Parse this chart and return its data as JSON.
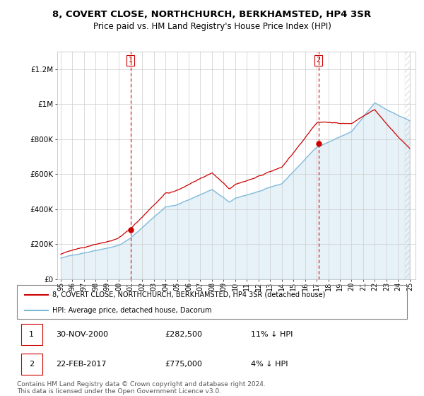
{
  "title": "8, COVERT CLOSE, NORTHCHURCH, BERKHAMSTED, HP4 3SR",
  "subtitle": "Price paid vs. HM Land Registry's House Price Index (HPI)",
  "hpi_color": "#7ab8d9",
  "price_color": "#cc0000",
  "vline_color": "#cc0000",
  "background_color": "#ffffff",
  "grid_color": "#cccccc",
  "ylim": [
    0,
    1300000
  ],
  "yticks": [
    0,
    200000,
    400000,
    600000,
    800000,
    1000000,
    1200000
  ],
  "ytick_labels": [
    "£0",
    "£200K",
    "£400K",
    "£600K",
    "£800K",
    "£1M",
    "£1.2M"
  ],
  "sale1_year": 2001.0,
  "sale1_price": 282500,
  "sale1_label": "1",
  "sale2_year": 2017.15,
  "sale2_price": 775000,
  "sale2_label": "2",
  "legend_entries": [
    {
      "label": "8, COVERT CLOSE, NORTHCHURCH, BERKHAMSTED, HP4 3SR (detached house)",
      "color": "#cc0000"
    },
    {
      "label": "HPI: Average price, detached house, Dacorum",
      "color": "#7ab8d9"
    }
  ],
  "table_rows": [
    {
      "num": "1",
      "date": "30-NOV-2000",
      "price": "£282,500",
      "hpi": "11% ↓ HPI"
    },
    {
      "num": "2",
      "date": "22-FEB-2017",
      "price": "£775,000",
      "hpi": "4% ↓ HPI"
    }
  ],
  "footer": "Contains HM Land Registry data © Crown copyright and database right 2024.\nThis data is licensed under the Open Government Licence v3.0."
}
